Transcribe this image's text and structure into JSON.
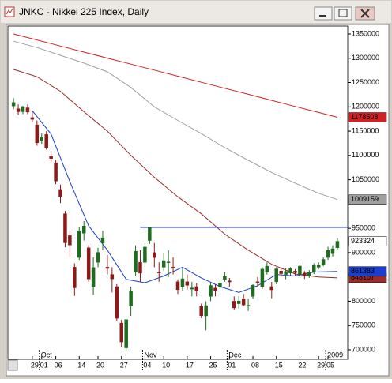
{
  "chart_data": {
    "type": "candlestick",
    "title": "JNKC - Nikkei 225 Index, Daily",
    "categories": [
      null,
      null,
      null,
      null,
      "29",
      null,
      "01",
      null,
      null,
      "06",
      null,
      null,
      null,
      null,
      "14",
      null,
      null,
      null,
      "20",
      null,
      null,
      null,
      null,
      "27",
      null,
      null,
      null,
      null,
      "04",
      null,
      null,
      null,
      "10",
      null,
      null,
      null,
      null,
      "17",
      null,
      null,
      null,
      null,
      "25",
      null,
      null,
      null,
      "01",
      null,
      null,
      null,
      null,
      "08",
      null,
      null,
      null,
      null,
      "15",
      null,
      null,
      null,
      null,
      "22",
      null,
      null,
      null,
      "29",
      null,
      "05",
      null,
      null
    ],
    "month_labels": [
      {
        "label": "Oct",
        "x": 6
      },
      {
        "label": "Nov",
        "x": 28
      },
      {
        "label": "Dec",
        "x": 46
      },
      {
        "label": "2009",
        "x": 67
      }
    ],
    "ohlc": [
      [
        1202000,
        1218000,
        1195000,
        1209000
      ],
      [
        1196000,
        1205000,
        1183000,
        1190000
      ],
      [
        1190000,
        1202000,
        1185000,
        1200600
      ],
      [
        1198000,
        1205000,
        1185000,
        1189300
      ],
      [
        1178000,
        1190000,
        1168000,
        1174300
      ],
      [
        1163000,
        1172000,
        1120000,
        1126000
      ],
      [
        1130000,
        1145000,
        1124000,
        1136800
      ],
      [
        1143000,
        1150000,
        1112000,
        1115400
      ],
      [
        1098000,
        1110000,
        1086000,
        1093800
      ],
      [
        1085000,
        1090000,
        1041000,
        1047300
      ],
      [
        1030000,
        1040000,
        1002000,
        1015500
      ],
      [
        980000,
        986000,
        911000,
        920300
      ],
      [
        935000,
        945000,
        892000,
        915700
      ],
      [
        870000,
        878000,
        811000,
        827600
      ],
      [
        890000,
        952000,
        885000,
        944700
      ],
      [
        940000,
        965000,
        925000,
        954700
      ],
      [
        910000,
        915000,
        840000,
        845800
      ],
      [
        830000,
        890000,
        813000,
        869300
      ],
      [
        880000,
        910000,
        870000,
        900500
      ],
      [
        920000,
        945000,
        905000,
        930600
      ],
      [
        870000,
        895000,
        855000,
        867400
      ],
      [
        855000,
        870000,
        818000,
        846000
      ],
      [
        830000,
        835000,
        760000,
        764900
      ],
      [
        755000,
        762000,
        705000,
        716200
      ],
      [
        704000,
        763000,
        699000,
        762100
      ],
      [
        790000,
        830000,
        770000,
        821100
      ],
      [
        860000,
        915000,
        852000,
        902900
      ],
      [
        880000,
        905000,
        840000,
        857700
      ],
      [
        880000,
        920000,
        870000,
        911400
      ],
      [
        925000,
        952000,
        918000,
        952100
      ],
      [
        900000,
        920000,
        870000,
        889900
      ],
      [
        860000,
        880000,
        840000,
        858300
      ],
      [
        870000,
        900000,
        862000,
        883600
      ],
      [
        880000,
        905000,
        850000,
        880900
      ],
      [
        870000,
        890000,
        855000,
        869300
      ],
      [
        840000,
        845000,
        815000,
        823800
      ],
      [
        830000,
        870000,
        822000,
        846200
      ],
      [
        840000,
        855000,
        824000,
        832800
      ],
      [
        825000,
        840000,
        810000,
        827300
      ],
      [
        830000,
        838000,
        810000,
        820700
      ],
      [
        790000,
        795000,
        765000,
        770300
      ],
      [
        770000,
        800000,
        740000,
        791000
      ],
      [
        810000,
        840000,
        800000,
        832300
      ],
      [
        827000,
        835000,
        810000,
        821300
      ],
      [
        830000,
        845000,
        825000,
        837300
      ],
      [
        845000,
        860000,
        840000,
        851200
      ],
      [
        842000,
        848000,
        830000,
        839700
      ],
      [
        800000,
        810000,
        783000,
        786300
      ],
      [
        795000,
        810000,
        785000,
        800400
      ],
      [
        805000,
        815000,
        790000,
        792400
      ],
      [
        790000,
        805000,
        780000,
        791700
      ],
      [
        810000,
        835000,
        805000,
        832900
      ],
      [
        840000,
        850000,
        830000,
        839500
      ],
      [
        830000,
        870000,
        825000,
        866000
      ],
      [
        860000,
        880000,
        855000,
        872000
      ],
      [
        830000,
        840000,
        806000,
        823500
      ],
      [
        840000,
        870000,
        835000,
        866500
      ],
      [
        862000,
        870000,
        850000,
        856800
      ],
      [
        855000,
        868000,
        845000,
        861200
      ],
      [
        858000,
        870000,
        852000,
        866700
      ],
      [
        862000,
        866000,
        852000,
        858800
      ],
      [
        855000,
        876000,
        850000,
        872300
      ],
      [
        858000,
        862000,
        846000,
        851700
      ],
      [
        852000,
        864000,
        848000,
        859900
      ],
      [
        860000,
        878000,
        856000,
        873900
      ],
      [
        870000,
        880000,
        866000,
        874700
      ],
      [
        875000,
        890000,
        872000,
        886000
      ],
      [
        890000,
        912000,
        885000,
        904300
      ],
      [
        898000,
        915000,
        892000,
        908000
      ],
      [
        910000,
        930000,
        905000,
        923324
      ]
    ],
    "up_color": "#1f6b1f",
    "down_color": "#8b1a1a",
    "lines": [
      {
        "color": "#d42020",
        "x": [
          0,
          5,
          10,
          15,
          20,
          25,
          30,
          35,
          40,
          45,
          50,
          55,
          60,
          65,
          69
        ],
        "values": [
          1350000,
          1337600,
          1325100,
          1312700,
          1300300,
          1287900,
          1275500,
          1263000,
          1250600,
          1238200,
          1225800,
          1213300,
          1200900,
          1188500,
          1178508
        ]
      },
      {
        "color": "#a0a0a0",
        "x": [
          0,
          5,
          10,
          15,
          20,
          25,
          30,
          35,
          40,
          45,
          50,
          55,
          60,
          65,
          69
        ],
        "values": [
          1335000,
          1322000,
          1306000,
          1290000,
          1272000,
          1240000,
          1200000,
          1172000,
          1145000,
          1116000,
          1090000,
          1065000,
          1043000,
          1022000,
          1009159
        ]
      },
      {
        "color": "#9b2a2a",
        "x": [
          0,
          5,
          10,
          15,
          20,
          25,
          30,
          35,
          40,
          45,
          50,
          55,
          60,
          65,
          69
        ],
        "values": [
          1277000,
          1262000,
          1232000,
          1190000,
          1150000,
          1100000,
          1055000,
          1015000,
          980000,
          938000,
          905000,
          876000,
          856000,
          850000,
          848107
        ]
      },
      {
        "color": "#1a3fd0",
        "x": [
          4,
          8,
          12,
          16,
          20,
          24,
          28,
          32,
          36,
          40,
          44,
          48,
          52,
          56,
          60,
          64,
          69
        ],
        "values": [
          1192000,
          1144000,
          1046000,
          955000,
          905000,
          845000,
          838000,
          852000,
          870000,
          848000,
          830000,
          818000,
          832000,
          855000,
          852000,
          860000,
          861383
        ]
      }
    ],
    "reference_line": {
      "value": 952000,
      "x": 27,
      "color": "#1a2fe0"
    },
    "last_close_color": "#ffffff",
    "xlim": [
      -1.2,
      71.2
    ],
    "ylim": [
      680500,
      1366250
    ],
    "yticks": [
      700000,
      750000,
      800000,
      900000,
      950000,
      1050000,
      1100000,
      1150000,
      1200000,
      1250000,
      1300000,
      1350000
    ],
    "grid": false
  }
}
